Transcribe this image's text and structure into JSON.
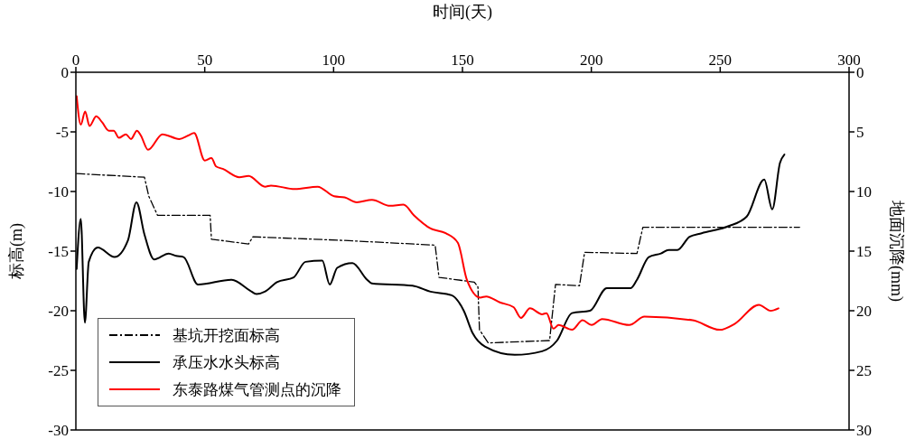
{
  "chart_data": {
    "type": "line",
    "xlabel": "时间(天)",
    "ylabel": "标高(m)",
    "y2label": "地面沉降(mm)",
    "xlim": [
      0,
      300
    ],
    "xticks": [
      0,
      50,
      100,
      150,
      200,
      250,
      300
    ],
    "ylim": [
      -30,
      0
    ],
    "yticks": [
      -30,
      -25,
      -20,
      -15,
      -10,
      -5,
      0
    ],
    "y2lim": [
      30,
      0
    ],
    "y2ticks": [
      0,
      5,
      10,
      15,
      20,
      25,
      30
    ],
    "legend": "bottom left",
    "grid": false,
    "marker": "none",
    "series": [
      {
        "name": "基坑开挖面标高",
        "color": "#000000",
        "line_style": "dashdot",
        "x": [
          0.3,
          26.6,
          28.3,
          31.7,
          52.1,
          52.6,
          67,
          68.7,
          103.7,
          139.4,
          140.9,
          154.6,
          156,
          156.6,
          160,
          183.8,
          186.1,
          195.4,
          197.4,
          217.7,
          220,
          280.8
        ],
        "values": [
          -8.5,
          -8.8,
          -10.4,
          -12,
          -12,
          -14,
          -14.4,
          -13.8,
          -14.1,
          -14.5,
          -17.2,
          -17.6,
          -18,
          -21.6,
          -22.7,
          -22.5,
          -17.8,
          -17.9,
          -15.1,
          -15.2,
          -13,
          -13
        ]
      },
      {
        "name": "承压水水头标高",
        "color": "#000000",
        "line_style": "solid",
        "x": [
          0.3,
          1.9,
          3.5,
          5,
          8.5,
          15,
          20.2,
          23.5,
          26.6,
          30.4,
          36,
          38.9,
          41.8,
          47.4,
          60.5,
          67.5,
          70.1,
          73.3,
          78,
          84.5,
          89.1,
          95.6,
          98.5,
          101.4,
          107.3,
          113,
          114.8,
          130.6,
          137.6,
          145.8,
          150.5,
          154,
          158.7,
          170.3,
          180.9,
          186.7,
          192.5,
          199.5,
          206,
          215.3,
          217.7,
          222.3,
          227,
          230,
          233.4,
          238.1,
          242.8,
          253.3,
          260.3,
          267.1,
          270.2,
          273.2,
          274.9
        ],
        "values": [
          -16.5,
          -12.3,
          -21,
          -15.9,
          -14.7,
          -15.5,
          -14.1,
          -10.9,
          -13.6,
          -15.7,
          -15.2,
          -15.4,
          -15.5,
          -17.8,
          -17.4,
          -18.3,
          -18.6,
          -18.4,
          -17.6,
          -17.2,
          -15.9,
          -15.8,
          -17.8,
          -16.4,
          -16,
          -17.4,
          -17.7,
          -17.9,
          -18.4,
          -18.7,
          -20,
          -21.9,
          -23,
          -23.7,
          -23.4,
          -22.5,
          -20.2,
          -20,
          -18.1,
          -18.1,
          -17.4,
          -15.5,
          -15.2,
          -14.9,
          -14.9,
          -13.8,
          -13.5,
          -12.9,
          -12.1,
          -9,
          -11.5,
          -7.6,
          -6.9
        ]
      },
      {
        "name": "东泰路煤气管测点的沉降",
        "color": "#ff0000",
        "line_style": "solid",
        "axis": "y2",
        "x": [
          0.3,
          1.9,
          3.6,
          5.3,
          7.9,
          10.2,
          12.8,
          14.7,
          16.7,
          19.4,
          21.4,
          23.7,
          25.2,
          28,
          33.6,
          40.1,
          43.6,
          45.9,
          50,
          52.6,
          54.4,
          57,
          63.4,
          67,
          73.4,
          75.7,
          85,
          93.8,
          100.2,
          104.3,
          109,
          114.9,
          121.9,
          127.1,
          131.2,
          137.6,
          143.5,
          148.2,
          151.7,
          156.9,
          159.2,
          164.5,
          169.8,
          172.7,
          176.2,
          180.9,
          182.6,
          185.3,
          187.3,
          192.5,
          196.6,
          200.1,
          204.2,
          214.7,
          220.6,
          239.3,
          249.8,
          255.6,
          265,
          269.6,
          272.6
        ],
        "values": [
          2,
          4.4,
          3.3,
          4.5,
          3.7,
          4.2,
          4.9,
          4.9,
          5.5,
          5.2,
          5.6,
          4.9,
          5.3,
          6.5,
          5.2,
          5.6,
          5.3,
          5.1,
          7.4,
          7.2,
          7.9,
          8.1,
          8.8,
          8.7,
          9.6,
          9.5,
          9.8,
          9.6,
          10.4,
          10.5,
          10.9,
          10.7,
          11.2,
          11.1,
          12,
          13.1,
          13.5,
          14.3,
          17.4,
          18.9,
          18.8,
          19.3,
          19.7,
          20.6,
          19.8,
          20.3,
          20.2,
          21.5,
          21.2,
          21.6,
          20.8,
          21.2,
          20.7,
          21.2,
          20.5,
          20.8,
          21.6,
          21.1,
          19.5,
          20,
          19.8
        ]
      }
    ]
  }
}
